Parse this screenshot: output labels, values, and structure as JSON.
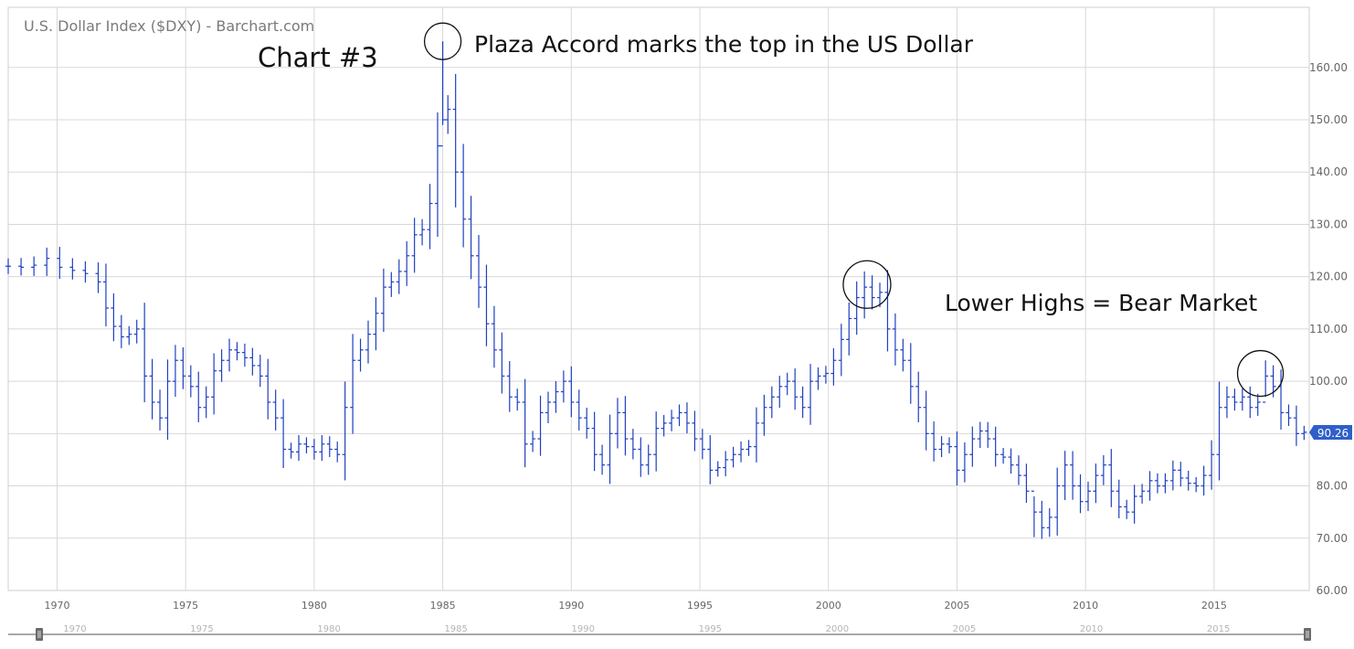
{
  "header": {
    "title": "U.S. Dollar Index ($DXY) - Barchart.com"
  },
  "annotations": {
    "chart_label": "Chart #3",
    "plaza_note": "Plaza Accord marks the top in the US Dollar",
    "bear_note": "Lower Highs = Bear Market"
  },
  "last_price": "90.26",
  "colors": {
    "bars": "#1f3fbf",
    "grid": "#d8d8d8",
    "axis_text": "#666666",
    "price_badge": "#2f5fc9"
  },
  "navigator": {
    "labels": [
      "1970",
      "1975",
      "1980",
      "1985",
      "1990",
      "1995",
      "2000",
      "2005",
      "2010",
      "2015"
    ]
  },
  "chart_data": {
    "type": "ohlc",
    "title": "U.S. Dollar Index ($DXY) - Barchart.com",
    "interval": "quarterly",
    "x_tick_labels": [
      "1970",
      "1975",
      "1980",
      "1985",
      "1990",
      "1995",
      "2000",
      "2005",
      "2010",
      "2015"
    ],
    "y_tick_labels": [
      "60.00",
      "70.00",
      "80.00",
      "90.00",
      "100.00",
      "110.00",
      "120.00",
      "130.00",
      "140.00",
      "150.00",
      "160.00"
    ],
    "xlim": [
      1968.1,
      2018.7
    ],
    "ylim": [
      60,
      171.5
    ],
    "grid": true,
    "y_axis_side": "right",
    "circled_peaks": [
      {
        "x": 1985.0,
        "y": 165
      },
      {
        "x": 2001.5,
        "y": 118.5
      },
      {
        "x": 2016.8,
        "y": 101.5
      }
    ],
    "series": [
      {
        "values": [
          [
            1968.1,
            122.0
          ],
          [
            1968.6,
            121.8
          ],
          [
            1969.1,
            122.2
          ],
          [
            1969.6,
            123.5
          ],
          [
            1970.1,
            121.8
          ],
          [
            1970.6,
            121.2
          ],
          [
            1971.1,
            120.6
          ],
          [
            1971.6,
            119.0
          ],
          [
            1971.9,
            114.0
          ],
          [
            1972.2,
            110.5
          ],
          [
            1972.5,
            108.5
          ],
          [
            1972.8,
            109.0
          ],
          [
            1973.1,
            110.0
          ],
          [
            1973.4,
            101.0
          ],
          [
            1973.7,
            96.0
          ],
          [
            1974.0,
            93.0
          ],
          [
            1974.3,
            100.0
          ],
          [
            1974.6,
            104.0
          ],
          [
            1974.9,
            101.0
          ],
          [
            1975.2,
            99.0
          ],
          [
            1975.5,
            95.0
          ],
          [
            1975.8,
            97.0
          ],
          [
            1976.1,
            102.0
          ],
          [
            1976.4,
            104.0
          ],
          [
            1976.7,
            106.0
          ],
          [
            1977.0,
            105.5
          ],
          [
            1977.3,
            104.5
          ],
          [
            1977.6,
            103.0
          ],
          [
            1977.9,
            101.0
          ],
          [
            1978.2,
            96.0
          ],
          [
            1978.5,
            93.0
          ],
          [
            1978.8,
            87.0
          ],
          [
            1979.1,
            86.5
          ],
          [
            1979.4,
            88.0
          ],
          [
            1979.7,
            87.5
          ],
          [
            1980.0,
            86.5
          ],
          [
            1980.3,
            88.0
          ],
          [
            1980.6,
            87.0
          ],
          [
            1980.9,
            86.0
          ],
          [
            1981.2,
            95.0
          ],
          [
            1981.5,
            104.0
          ],
          [
            1981.8,
            106.0
          ],
          [
            1982.1,
            109.0
          ],
          [
            1982.4,
            113.0
          ],
          [
            1982.7,
            118.0
          ],
          [
            1983.0,
            119.0
          ],
          [
            1983.3,
            121.0
          ],
          [
            1983.6,
            124.0
          ],
          [
            1983.9,
            128.0
          ],
          [
            1984.2,
            129.0
          ],
          [
            1984.5,
            134.0
          ],
          [
            1984.8,
            145.0
          ],
          [
            1985.0,
            150.0
          ],
          [
            1985.2,
            152.0
          ],
          [
            1985.5,
            140.0
          ],
          [
            1985.8,
            131.0
          ],
          [
            1986.1,
            124.0
          ],
          [
            1986.4,
            118.0
          ],
          [
            1986.7,
            111.0
          ],
          [
            1987.0,
            106.0
          ],
          [
            1987.3,
            101.0
          ],
          [
            1987.6,
            97.0
          ],
          [
            1987.9,
            96.0
          ],
          [
            1988.2,
            88.0
          ],
          [
            1988.5,
            89.0
          ],
          [
            1988.8,
            94.0
          ],
          [
            1989.1,
            96.0
          ],
          [
            1989.4,
            98.0
          ],
          [
            1989.7,
            100.0
          ],
          [
            1990.0,
            96.0
          ],
          [
            1990.3,
            93.0
          ],
          [
            1990.6,
            91.0
          ],
          [
            1990.9,
            86.0
          ],
          [
            1991.2,
            84.0
          ],
          [
            1991.5,
            90.0
          ],
          [
            1991.8,
            94.0
          ],
          [
            1992.1,
            89.0
          ],
          [
            1992.4,
            87.0
          ],
          [
            1992.7,
            84.0
          ],
          [
            1993.0,
            86.0
          ],
          [
            1993.3,
            91.0
          ],
          [
            1993.6,
            92.0
          ],
          [
            1993.9,
            93.0
          ],
          [
            1994.2,
            94.0
          ],
          [
            1994.5,
            92.0
          ],
          [
            1994.8,
            89.0
          ],
          [
            1995.1,
            87.0
          ],
          [
            1995.4,
            83.0
          ],
          [
            1995.7,
            83.5
          ],
          [
            1996.0,
            85.0
          ],
          [
            1996.3,
            86.0
          ],
          [
            1996.6,
            87.0
          ],
          [
            1996.9,
            87.5
          ],
          [
            1997.2,
            92.0
          ],
          [
            1997.5,
            95.0
          ],
          [
            1997.8,
            97.0
          ],
          [
            1998.1,
            99.0
          ],
          [
            1998.4,
            100.0
          ],
          [
            1998.7,
            97.0
          ],
          [
            1999.0,
            95.0
          ],
          [
            1999.3,
            100.0
          ],
          [
            1999.6,
            101.0
          ],
          [
            1999.9,
            101.5
          ],
          [
            2000.2,
            104.0
          ],
          [
            2000.5,
            108.0
          ],
          [
            2000.8,
            112.0
          ],
          [
            2001.1,
            116.0
          ],
          [
            2001.4,
            118.0
          ],
          [
            2001.7,
            116.0
          ],
          [
            2002.0,
            117.0
          ],
          [
            2002.3,
            110.0
          ],
          [
            2002.6,
            106.0
          ],
          [
            2002.9,
            104.0
          ],
          [
            2003.2,
            99.0
          ],
          [
            2003.5,
            95.0
          ],
          [
            2003.8,
            90.0
          ],
          [
            2004.1,
            87.0
          ],
          [
            2004.4,
            88.0
          ],
          [
            2004.7,
            87.5
          ],
          [
            2005.0,
            83.0
          ],
          [
            2005.3,
            86.0
          ],
          [
            2005.6,
            89.0
          ],
          [
            2005.9,
            90.5
          ],
          [
            2006.2,
            89.0
          ],
          [
            2006.5,
            86.0
          ],
          [
            2006.8,
            85.5
          ],
          [
            2007.1,
            84.0
          ],
          [
            2007.4,
            82.0
          ],
          [
            2007.7,
            79.0
          ],
          [
            2008.0,
            75.0
          ],
          [
            2008.3,
            72.0
          ],
          [
            2008.6,
            74.0
          ],
          [
            2008.9,
            80.0
          ],
          [
            2009.2,
            84.0
          ],
          [
            2009.5,
            80.0
          ],
          [
            2009.8,
            77.0
          ],
          [
            2010.1,
            79.0
          ],
          [
            2010.4,
            82.0
          ],
          [
            2010.7,
            84.0
          ],
          [
            2011.0,
            79.0
          ],
          [
            2011.3,
            76.0
          ],
          [
            2011.6,
            75.0
          ],
          [
            2011.9,
            78.0
          ],
          [
            2012.2,
            79.0
          ],
          [
            2012.5,
            81.0
          ],
          [
            2012.8,
            80.0
          ],
          [
            2013.1,
            81.0
          ],
          [
            2013.4,
            83.0
          ],
          [
            2013.7,
            81.5
          ],
          [
            2014.0,
            80.5
          ],
          [
            2014.3,
            80.0
          ],
          [
            2014.6,
            82.0
          ],
          [
            2014.9,
            86.0
          ],
          [
            2015.2,
            95.0
          ],
          [
            2015.5,
            97.0
          ],
          [
            2015.8,
            96.0
          ],
          [
            2016.1,
            97.0
          ],
          [
            2016.4,
            95.0
          ],
          [
            2016.7,
            96.0
          ],
          [
            2017.0,
            101.0
          ],
          [
            2017.3,
            99.0
          ],
          [
            2017.6,
            94.0
          ],
          [
            2017.9,
            93.0
          ],
          [
            2018.2,
            90.0
          ],
          [
            2018.5,
            90.26
          ]
        ]
      }
    ]
  }
}
